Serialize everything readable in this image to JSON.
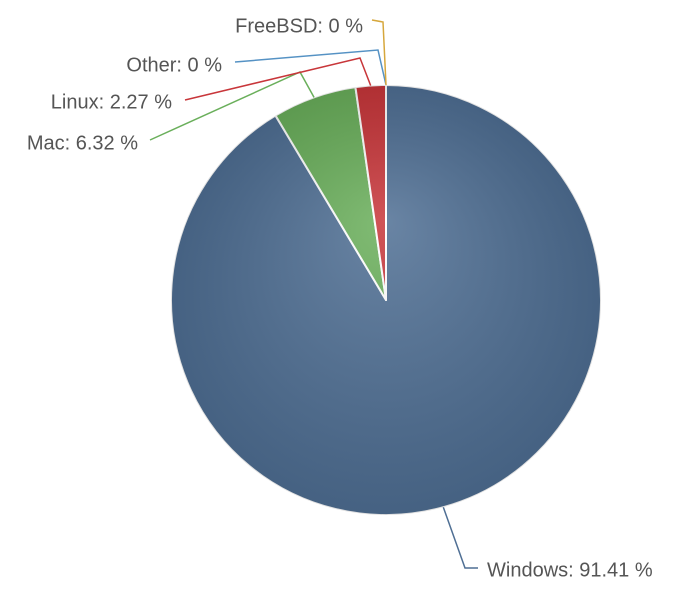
{
  "chart_data": {
    "type": "pie",
    "values": [
      91.41,
      6.32,
      2.27,
      0,
      0
    ],
    "value_labels": [
      "Windows: 91.41 %",
      "Mac: 6.32 %",
      "Linux: 2.27 %",
      "Other: 0 %",
      "FreeBSD: 0 %"
    ],
    "colors": [
      "#4f6f94",
      "#6aaf5b",
      "#c8363a",
      "#5592c4",
      "#d6a73c"
    ]
  }
}
